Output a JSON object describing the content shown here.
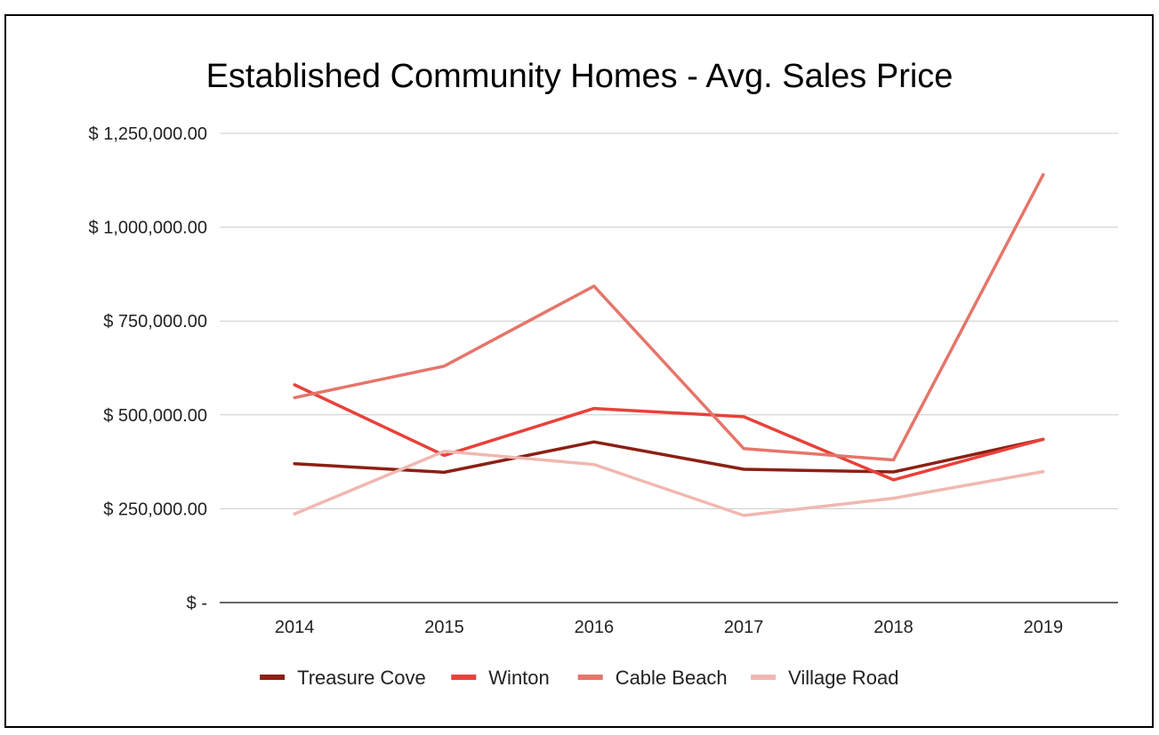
{
  "chart_data": {
    "type": "line",
    "title": "Established Community Homes - Avg. Sales Price",
    "xlabel": "",
    "ylabel": "",
    "categories": [
      "2014",
      "2015",
      "2016",
      "2017",
      "2018",
      "2019"
    ],
    "ylim": [
      0,
      1250000
    ],
    "y_ticks": [
      0,
      250000,
      500000,
      750000,
      1000000,
      1250000
    ],
    "y_tick_labels": [
      "$ -",
      "$ 250,000.00",
      "$ 500,000.00",
      "$ 750,000.00",
      "$ 1,000,000.00",
      "$ 1,250,000.00"
    ],
    "grid": true,
    "legend_position": "bottom",
    "series": [
      {
        "name": "Treasure Cove",
        "color": "#8b2013",
        "values": [
          370000,
          347000,
          428000,
          355000,
          348000,
          435000
        ]
      },
      {
        "name": "Winton",
        "color": "#e8413a",
        "values": [
          580000,
          392000,
          517000,
          495000,
          327000,
          435000
        ]
      },
      {
        "name": "Cable Beach",
        "color": "#e6756a",
        "values": [
          546000,
          630000,
          843000,
          410000,
          380000,
          1140000
        ]
      },
      {
        "name": "Village Road",
        "color": "#f0b8b1",
        "values": [
          236000,
          403000,
          368000,
          232000,
          278000,
          349000
        ]
      }
    ]
  }
}
